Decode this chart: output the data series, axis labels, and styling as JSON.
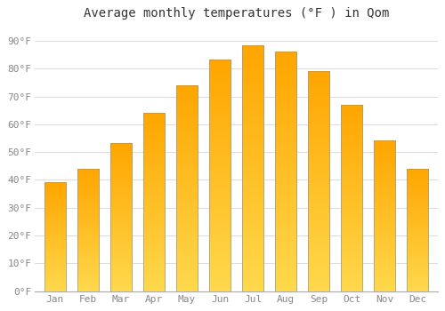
{
  "title": "Average monthly temperatures (°F ) in Qom",
  "months": [
    "Jan",
    "Feb",
    "Mar",
    "Apr",
    "May",
    "Jun",
    "Jul",
    "Aug",
    "Sep",
    "Oct",
    "Nov",
    "Dec"
  ],
  "values": [
    39.2,
    44.1,
    53.2,
    64.0,
    74.0,
    83.3,
    88.5,
    86.2,
    79.0,
    67.0,
    54.1,
    44.1
  ],
  "bar_color": "#FFA500",
  "bar_edge_color": "#999999",
  "background_color": "#ffffff",
  "grid_color": "#dddddd",
  "yticks": [
    0,
    10,
    20,
    30,
    40,
    50,
    60,
    70,
    80,
    90
  ],
  "ylim": [
    0,
    95
  ],
  "ylabel_suffix": "°F",
  "title_fontsize": 10,
  "tick_fontsize": 8,
  "font_family": "monospace"
}
